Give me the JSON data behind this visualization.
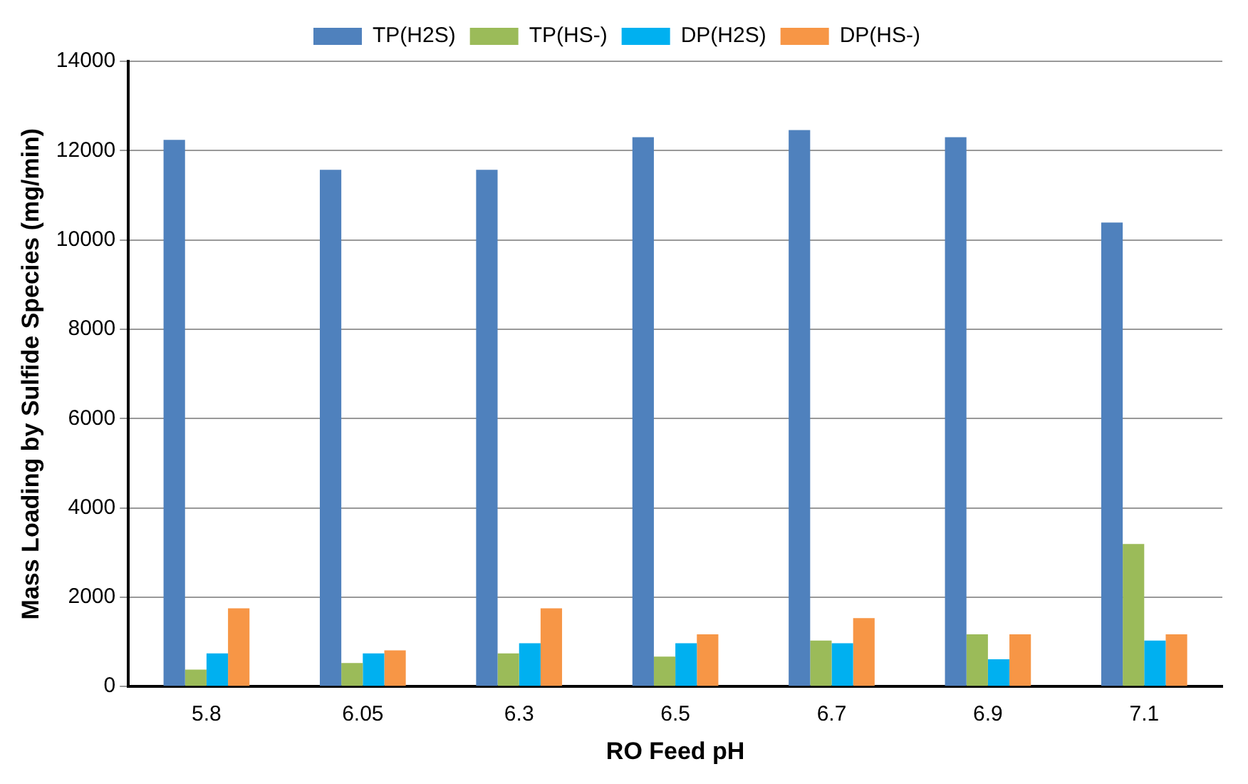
{
  "chart_data": {
    "type": "bar",
    "xlabel": "RO Feed pH",
    "ylabel": "Mass Loading by Sulfide Species (mg/min)",
    "categories": [
      "5.8",
      "6.05",
      "6.3",
      "6.5",
      "6.7",
      "6.9",
      "7.1"
    ],
    "series": [
      {
        "name": "TP(H2S)",
        "color": "#4f81bd",
        "values": [
          12240,
          11570,
          11570,
          12300,
          12460,
          12300,
          10390
        ]
      },
      {
        "name": "TP(HS-)",
        "color": "#9bbb59",
        "values": [
          380,
          525,
          740,
          670,
          1030,
          1170,
          3190
        ]
      },
      {
        "name": "DP(H2S)",
        "color": "#00b0f0",
        "values": [
          740,
          740,
          970,
          970,
          970,
          610,
          1030
        ]
      },
      {
        "name": "DP(HS-)",
        "color": "#f79646",
        "values": [
          1750,
          810,
          1750,
          1170,
          1530,
          1170,
          1170
        ]
      }
    ],
    "ylim": [
      0,
      14000
    ],
    "yticks": [
      0,
      2000,
      4000,
      6000,
      8000,
      10000,
      12000,
      14000
    ],
    "grid": "y",
    "legend": "top"
  }
}
